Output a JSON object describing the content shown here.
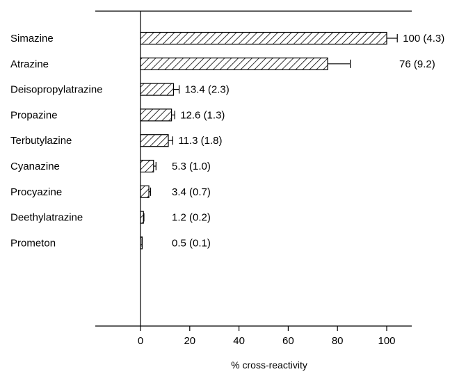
{
  "chart_data": {
    "type": "bar",
    "orientation": "horizontal",
    "categories": [
      "Simazine",
      "Atrazine",
      "Deisopropylatrazine",
      "Propazine",
      "Terbutylazine",
      "Cyanazine",
      "Procyazine",
      "Deethylatrazine",
      "Prometon"
    ],
    "values": [
      100,
      76,
      13.4,
      12.6,
      11.3,
      5.3,
      3.4,
      1.2,
      0.5
    ],
    "errors": [
      4.3,
      9.2,
      2.3,
      1.3,
      1.8,
      1.0,
      0.7,
      0.2,
      0.1
    ],
    "value_labels": [
      "100 (4.3)",
      "76 (9.2)",
      "13.4 (2.3)",
      "12.6 (1.3)",
      "11.3 (1.8)",
      "5.3 (1.0)",
      "3.4 (0.7)",
      "1.2 (0.2)",
      "0.5 (0.1)"
    ],
    "xlabel": "% cross-reactivity",
    "xlim": [
      -18,
      110
    ],
    "xticks": [
      0,
      20,
      40,
      60,
      80,
      100
    ],
    "bar_fill": "diagonal-hatch",
    "colors": {
      "bar_stroke": "#000000",
      "hatch": "#000000",
      "background": "#ffffff"
    }
  }
}
